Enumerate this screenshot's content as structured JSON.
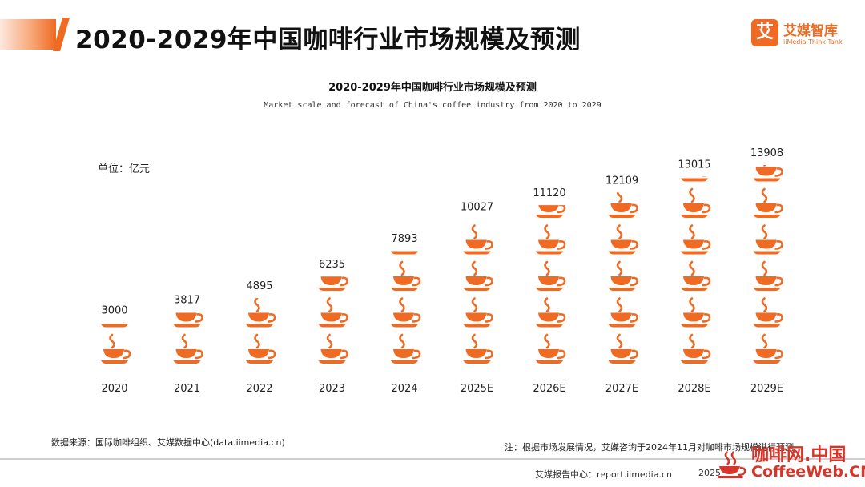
{
  "header": {
    "title": "2020-2029年中国咖啡行业市场规模及预测",
    "brand_logo": "艾",
    "brand_name": "艾媒智库",
    "brand_sub": "iiMedia Think Tank"
  },
  "unit_label": "单位：亿元",
  "chart_data": {
    "type": "bar",
    "title": "2020-2029年中国咖啡行业市场规模及预测",
    "subtitle": "Market scale and forecast of China's coffee industry from 2020 to 2029",
    "categories": [
      "2020",
      "2021",
      "2022",
      "2023",
      "2024",
      "2025E",
      "2026E",
      "2027E",
      "2028E",
      "2029E"
    ],
    "values": [
      3000,
      3817,
      4895,
      6235,
      7893,
      10027,
      11120,
      12109,
      13015,
      13908
    ],
    "unit": "亿元",
    "units_per_icon": 2500,
    "icon": "coffee-cup-icon",
    "color": "#ef6a22",
    "grid": false,
    "legend": false
  },
  "source": "数据来源：国际咖啡组织、艾媒数据中心(data.iimedia.cn)",
  "note": "注：根据市场发展情况，艾媒咨询于2024年11月对咖啡市场规模进行预测",
  "footer": {
    "report_center": "艾媒报告中心：report.iimedia.cn",
    "year": "2025"
  },
  "watermark": {
    "line1": "咖啡网.中国",
    "line2": "CoffeeWeb.CN"
  }
}
